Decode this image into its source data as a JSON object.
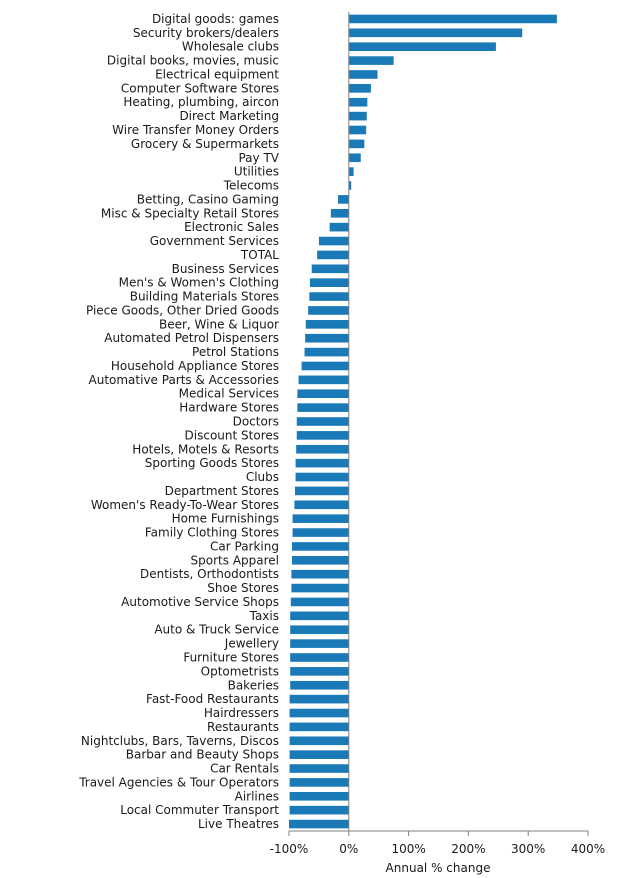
{
  "chart_data": {
    "type": "bar",
    "orientation": "horizontal",
    "title": "",
    "xlabel": "Annual % change",
    "ylabel": "",
    "xlim": [
      -100,
      400
    ],
    "x_ticks": [
      -100,
      0,
      100,
      200,
      300,
      400
    ],
    "x_tick_labels": [
      "-100%",
      "0%",
      "100%",
      "200%",
      "300%",
      "400%"
    ],
    "grid": false,
    "legend": "none",
    "bar_color": "#1a7ab8",
    "categories": [
      "Digital goods: games",
      "Security brokers/dealers",
      "Wholesale clubs",
      "Digital books, movies, music",
      "Electrical equipment",
      "Computer Software Stores",
      "Heating, plumbing, aircon",
      "Direct Marketing",
      "Wire Transfer Money Orders",
      "Grocery & Supermarkets",
      "Pay TV",
      "Utilities",
      "Telecoms",
      "Betting, Casino Gaming",
      "Misc & Specialty Retail Stores",
      "Electronic Sales",
      "Government Services",
      "TOTAL",
      "Business Services",
      "Men's & Women's Clothing",
      "Building Materials Stores",
      "Piece Goods, Other Dried Goods",
      "Beer, Wine & Liquor",
      "Automated Petrol Dispensers",
      "Petrol Stations",
      "Household Appliance Stores",
      "Automative Parts & Accessories",
      "Medical Services",
      "Hardware Stores",
      "Doctors",
      "Discount Stores",
      "Hotels, Motels & Resorts",
      "Sporting Goods Stores",
      "Clubs",
      "Department Stores",
      "Women's Ready-To-Wear Stores",
      "Home Furnishings",
      "Family Clothing Stores",
      "Car Parking",
      "Sports Apparel",
      "Dentists, Orthodontists",
      "Shoe Stores",
      "Automotive Service Shops",
      "Taxis",
      "Auto & Truck Service",
      "Jewellery",
      "Furniture Stores",
      "Optometrists",
      "Bakeries",
      "Fast-Food Restaurants",
      "Hairdressers",
      "Restaurants",
      "Nightclubs, Bars, Taverns, Discos",
      "Barbar and Beauty Shops",
      "Car Rentals",
      "Travel Agencies & Tour Operators",
      "Airlines",
      "Local Commuter Transport",
      "Live Theatres"
    ],
    "values": [
      348,
      290,
      246,
      75,
      48,
      37,
      31,
      30,
      29,
      26,
      20,
      8,
      4,
      -18,
      -30,
      -32,
      -50,
      -53,
      -62,
      -65,
      -66,
      -68,
      -72,
      -73,
      -74,
      -79,
      -84,
      -86,
      -86,
      -87,
      -87,
      -88,
      -89,
      -89,
      -90,
      -91,
      -94,
      -94,
      -95,
      -95,
      -96,
      -96,
      -97,
      -98,
      -98,
      -98,
      -98,
      -98,
      -98,
      -99,
      -99,
      -99,
      -99,
      -99,
      -99,
      -99,
      -99,
      -99,
      -100
    ]
  }
}
